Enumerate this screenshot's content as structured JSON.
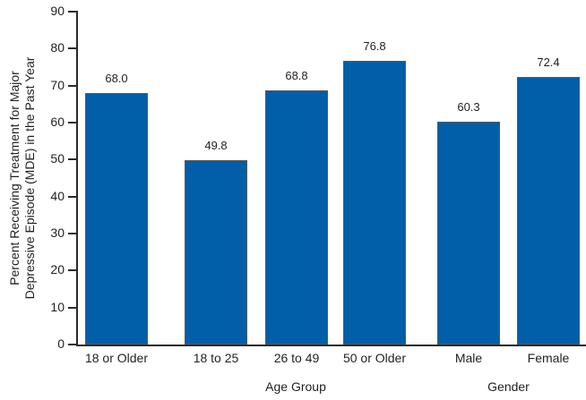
{
  "chart_data": {
    "type": "bar",
    "title": "",
    "ylabel_lines": [
      "Percent Receiving Treatment for Major",
      "Depressive Episode (MDE) in the Past Year"
    ],
    "xlabel": "",
    "ylim": [
      0,
      90
    ],
    "yticks": [
      0,
      10,
      20,
      30,
      40,
      50,
      60,
      70,
      80,
      90
    ],
    "categories": [
      "18 or Older",
      "18 to 25",
      "26 to 49",
      "50 or Older",
      "Male",
      "Female"
    ],
    "values": [
      68.0,
      49.8,
      68.8,
      76.8,
      60.3,
      72.4
    ],
    "value_labels": [
      "68.0",
      "49.8",
      "68.8",
      "76.8",
      "60.3",
      "72.4"
    ],
    "group_labels": [
      {
        "label": "Age Group",
        "bar_indices": [
          1,
          2,
          3
        ]
      },
      {
        "label": "Gender",
        "bar_indices": [
          4,
          5
        ]
      }
    ],
    "grid": false,
    "legend": null,
    "colors": {
      "bar_fill": "#005FA8",
      "bar_border": "#55575A",
      "axis": "#2B2B2B",
      "text": "#231F20"
    }
  }
}
